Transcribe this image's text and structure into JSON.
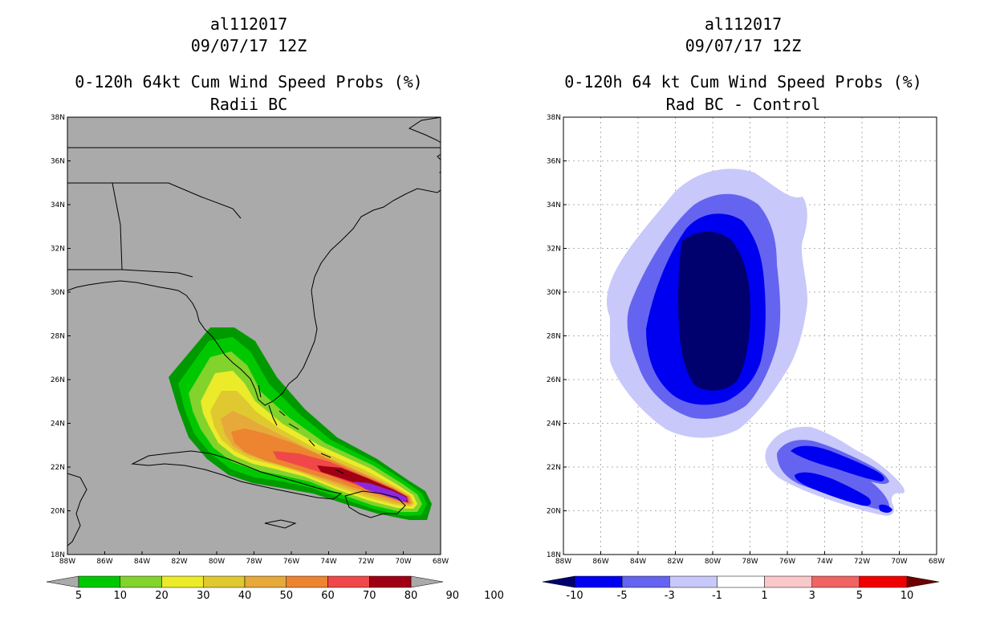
{
  "left_panel": {
    "storm_id": "al112017",
    "datetime": "09/07/17 12Z",
    "title_line1": "0-120h 64kt Cum Wind Speed Probs (%)",
    "title_line2": "Radii BC",
    "background_color": "#aaaaaa",
    "colorbar": {
      "labels": [
        "5",
        "10",
        "20",
        "30",
        "40",
        "50",
        "60",
        "70",
        "80",
        "90",
        "100"
      ],
      "colors": [
        "#009a00",
        "#00c800",
        "#82d32b",
        "#ebeb2a",
        "#e0c830",
        "#e6a93a",
        "#ec8430",
        "#f04848",
        "#a00014",
        "#8c28dc"
      ]
    }
  },
  "right_panel": {
    "storm_id": "al112017",
    "datetime": "09/07/17 12Z",
    "title_line1": "0-120h 64 kt Cum Wind Speed Probs (%)",
    "title_line2": "Rad BC - Control",
    "background_color": "#ffffff",
    "colorbar": {
      "labels": [
        "-10",
        "-5",
        "-3",
        "-1",
        "1",
        "3",
        "5",
        "10"
      ],
      "colors": [
        "#00006e",
        "#0000f0",
        "#6464f0",
        "#c8c8fa",
        "#ffffff",
        "#fac8c8",
        "#f06464",
        "#f00000",
        "#6e0000"
      ]
    }
  },
  "axes": {
    "lat_labels": [
      "38N",
      "36N",
      "34N",
      "32N",
      "30N",
      "28N",
      "26N",
      "24N",
      "22N",
      "20N",
      "18N"
    ],
    "lon_labels": [
      "88W",
      "86W",
      "84W",
      "82W",
      "80W",
      "78W",
      "76W",
      "74W",
      "72W",
      "70W",
      "68W"
    ]
  }
}
